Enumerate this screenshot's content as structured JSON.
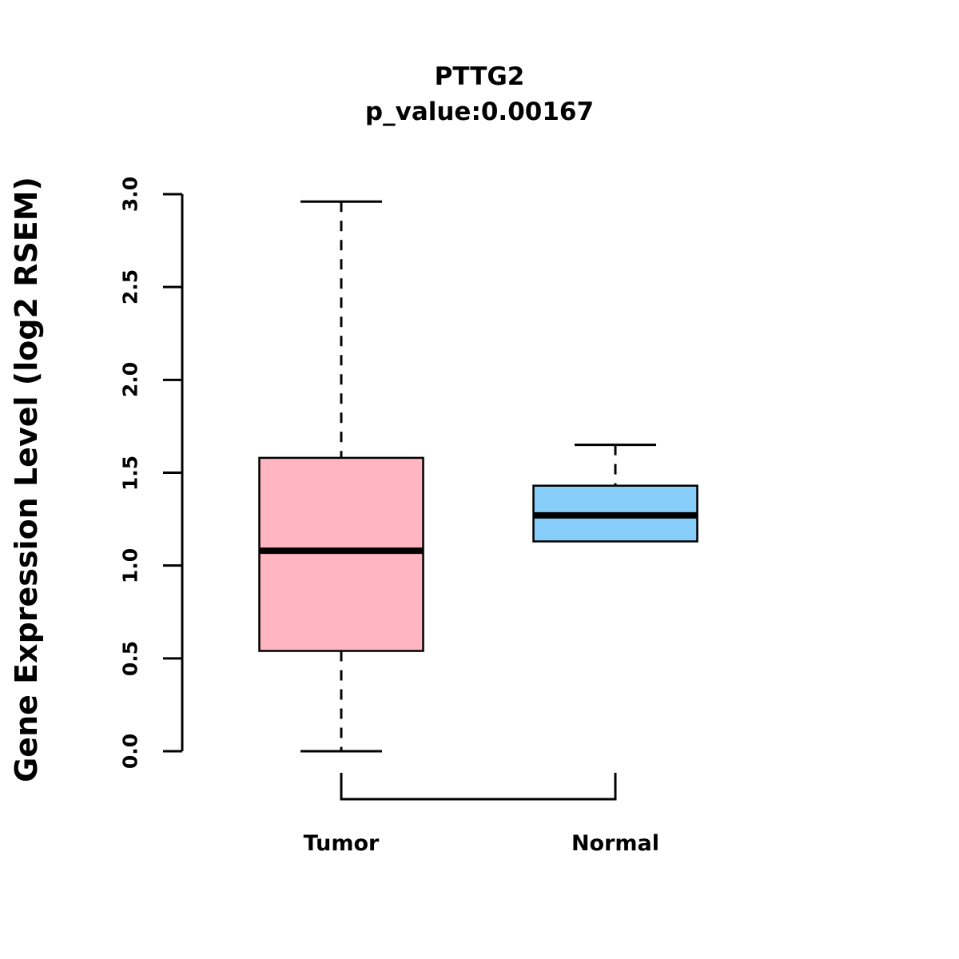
{
  "page": {
    "background": "#FFFFFF"
  },
  "chart_data": {
    "type": "boxplot",
    "title": "PTTG2",
    "subtitle": "p_value:0.00167",
    "ylabel": "Gene Expression Level (log2 RSEM)",
    "xlabel": "",
    "ylim": [
      0.0,
      3.0
    ],
    "yticks": [
      0.0,
      0.5,
      1.0,
      1.5,
      2.0,
      2.5,
      3.0
    ],
    "grid": false,
    "legend": "none",
    "categories": [
      "Tumor",
      "Normal"
    ],
    "series": [
      {
        "name": "Tumor",
        "box_color": "#FFB6C1",
        "border_color": "#000000",
        "lower_whisker": 0.0,
        "q1": 0.54,
        "median": 1.08,
        "q3": 1.58,
        "upper_whisker": 2.96
      },
      {
        "name": "Normal",
        "box_color": "#87CEFA",
        "border_color": "#000000",
        "lower_whisker": 1.13,
        "q1": 1.13,
        "median": 1.27,
        "q3": 1.43,
        "upper_whisker": 1.65
      }
    ]
  }
}
